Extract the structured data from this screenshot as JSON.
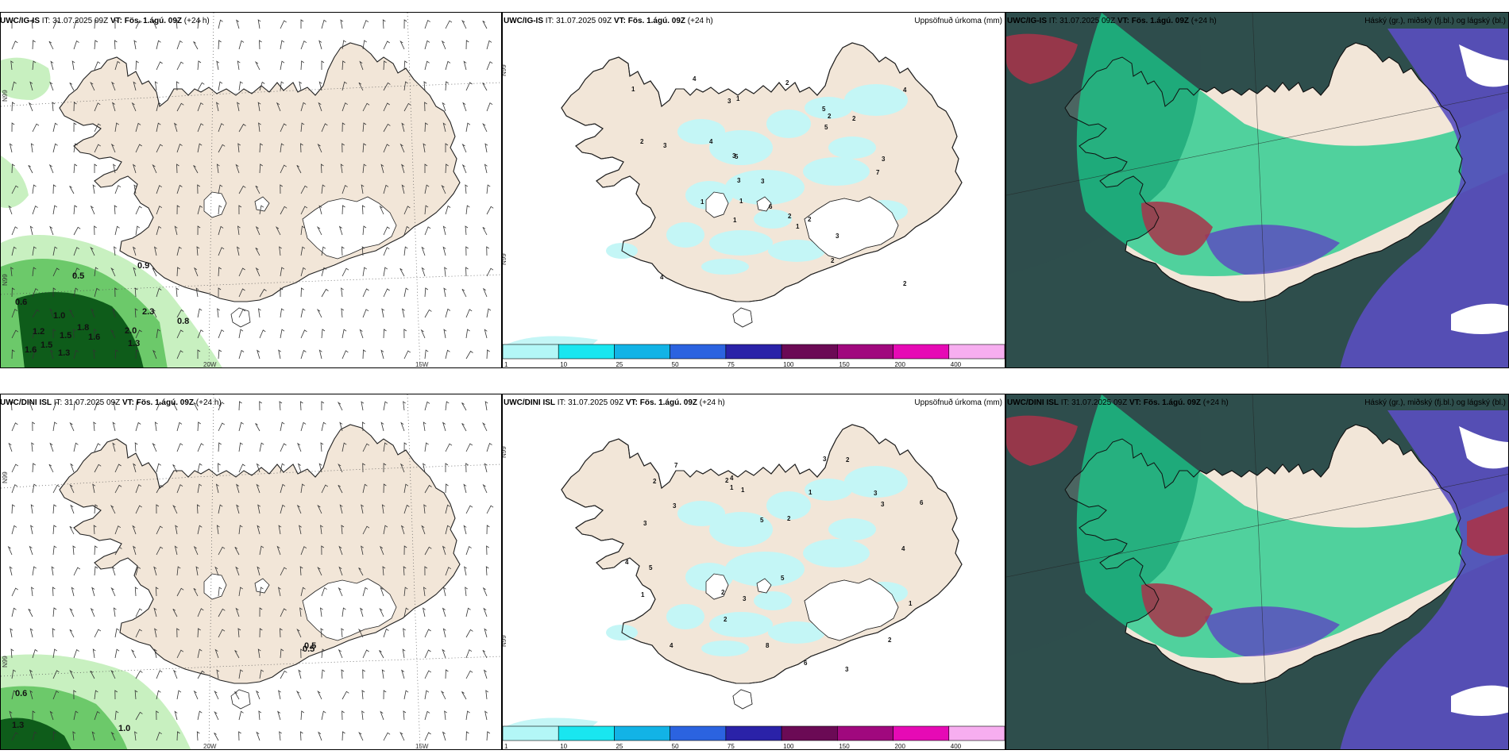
{
  "panels": [
    {
      "model": "UWC/IG-IS",
      "it_label": "IT:",
      "it_value": "31.07.2025 09Z",
      "vt_label": "VT:",
      "vt_value": "Fös. 1.ágú. 09Z",
      "lead": "(+24 h)",
      "right_title": "",
      "kind": "wind",
      "lat_labels": [
        "N99",
        "N99"
      ],
      "lon_labels": [
        "20W",
        "15W"
      ],
      "values": [
        "0.5",
        "0.9",
        "0.6",
        "1.0",
        "1.6",
        "1.8",
        "2.3",
        "2.0",
        "1.5",
        "1.2",
        "1.5",
        "0.8",
        "1.3",
        "1.6",
        "1.3"
      ]
    },
    {
      "model": "UWC/IG-IS",
      "it_label": "IT:",
      "it_value": "31.07.2025 09Z",
      "vt_label": "VT:",
      "vt_value": "Fös. 1.ágú. 09Z",
      "lead": "(+24 h)",
      "right_title": "Uppsöfnuð úrkoma (mm)",
      "kind": "precip",
      "lat_labels": [
        "N99",
        "N99"
      ],
      "values": [
        "2",
        "3",
        "1",
        "4",
        "5",
        "2",
        "3",
        "1",
        "2",
        "6",
        "7",
        "3",
        "4",
        "2",
        "5",
        "1",
        "3",
        "2",
        "4",
        "3",
        "1",
        "2",
        "5",
        "3",
        "2",
        "4",
        "1",
        "2",
        "3",
        "1"
      ]
    },
    {
      "model": "UWC/IG-IS",
      "it_label": "IT:",
      "it_value": "31.07.2025 09Z",
      "vt_label": "VT:",
      "vt_value": "Fös. 1.ágú. 09Z",
      "lead": "(+24 h)",
      "right_title": "Háský (gr.), miðský (fj.bl.) og lágský (bl.)",
      "kind": "cloud"
    },
    {
      "model": "UWC/DINI ISL",
      "it_label": "IT:",
      "it_value": "31.07.2025 09Z",
      "vt_label": "VT:",
      "vt_value": "Fös. 1.ágú. 09Z",
      "lead": "(+24 h)",
      "right_title": "",
      "kind": "wind",
      "lat_labels": [
        "N99",
        "N99"
      ],
      "lon_labels": [
        "20W",
        "15W"
      ],
      "values": [
        "0.5",
        "0.5",
        "0.6",
        "1.3",
        "1.0"
      ]
    },
    {
      "model": "UWC/DINI ISL",
      "it_label": "IT:",
      "it_value": "31.07.2025 09Z",
      "vt_label": "VT:",
      "vt_value": "Fös. 1.ágú. 09Z",
      "lead": "(+24 h)",
      "right_title": "Uppsöfnuð úrkoma (mm)",
      "kind": "precip",
      "lat_labels": [
        "N99",
        "N99"
      ],
      "values": [
        "2",
        "1",
        "3",
        "4",
        "5",
        "2",
        "6",
        "3",
        "1",
        "7",
        "4",
        "2",
        "3",
        "5",
        "8",
        "1",
        "2",
        "3",
        "4",
        "6",
        "2",
        "1",
        "3",
        "5",
        "2",
        "4",
        "3",
        "1",
        "2",
        "3"
      ]
    },
    {
      "model": "UWC/DINI ISL",
      "it_label": "IT:",
      "it_value": "31.07.2025 09Z",
      "vt_label": "VT:",
      "vt_value": "Fös. 1.ágú. 09Z",
      "lead": "(+24 h)",
      "right_title": "Háský (gr.), miðský (fj.bl.) og lágský (bl.)",
      "kind": "cloud"
    }
  ],
  "precip_legend": {
    "colors": [
      "#b3f7f7",
      "#19e6f0",
      "#12b3e6",
      "#2b63e0",
      "#2a22a8",
      "#6b0a55",
      "#a0087e",
      "#e60ab5",
      "#f7aef0"
    ],
    "ticks": [
      "1",
      "10",
      "25",
      "50",
      "75",
      "100",
      "150",
      "200",
      "400"
    ]
  },
  "colors": {
    "land": "#f2e6d8",
    "coast": "#222222",
    "snow": "#ffffff",
    "wind_green_light": "#c8f0c0",
    "wind_green_mid": "#6cc96a",
    "wind_green_dark": "#0e5c1a",
    "precip_cyan": "#c4f6f6",
    "cloud_dark": "#2e4e4c",
    "cloud_green": "#19c98a",
    "cloud_blue": "#5a4fc0",
    "cloud_red": "#a8344a"
  }
}
